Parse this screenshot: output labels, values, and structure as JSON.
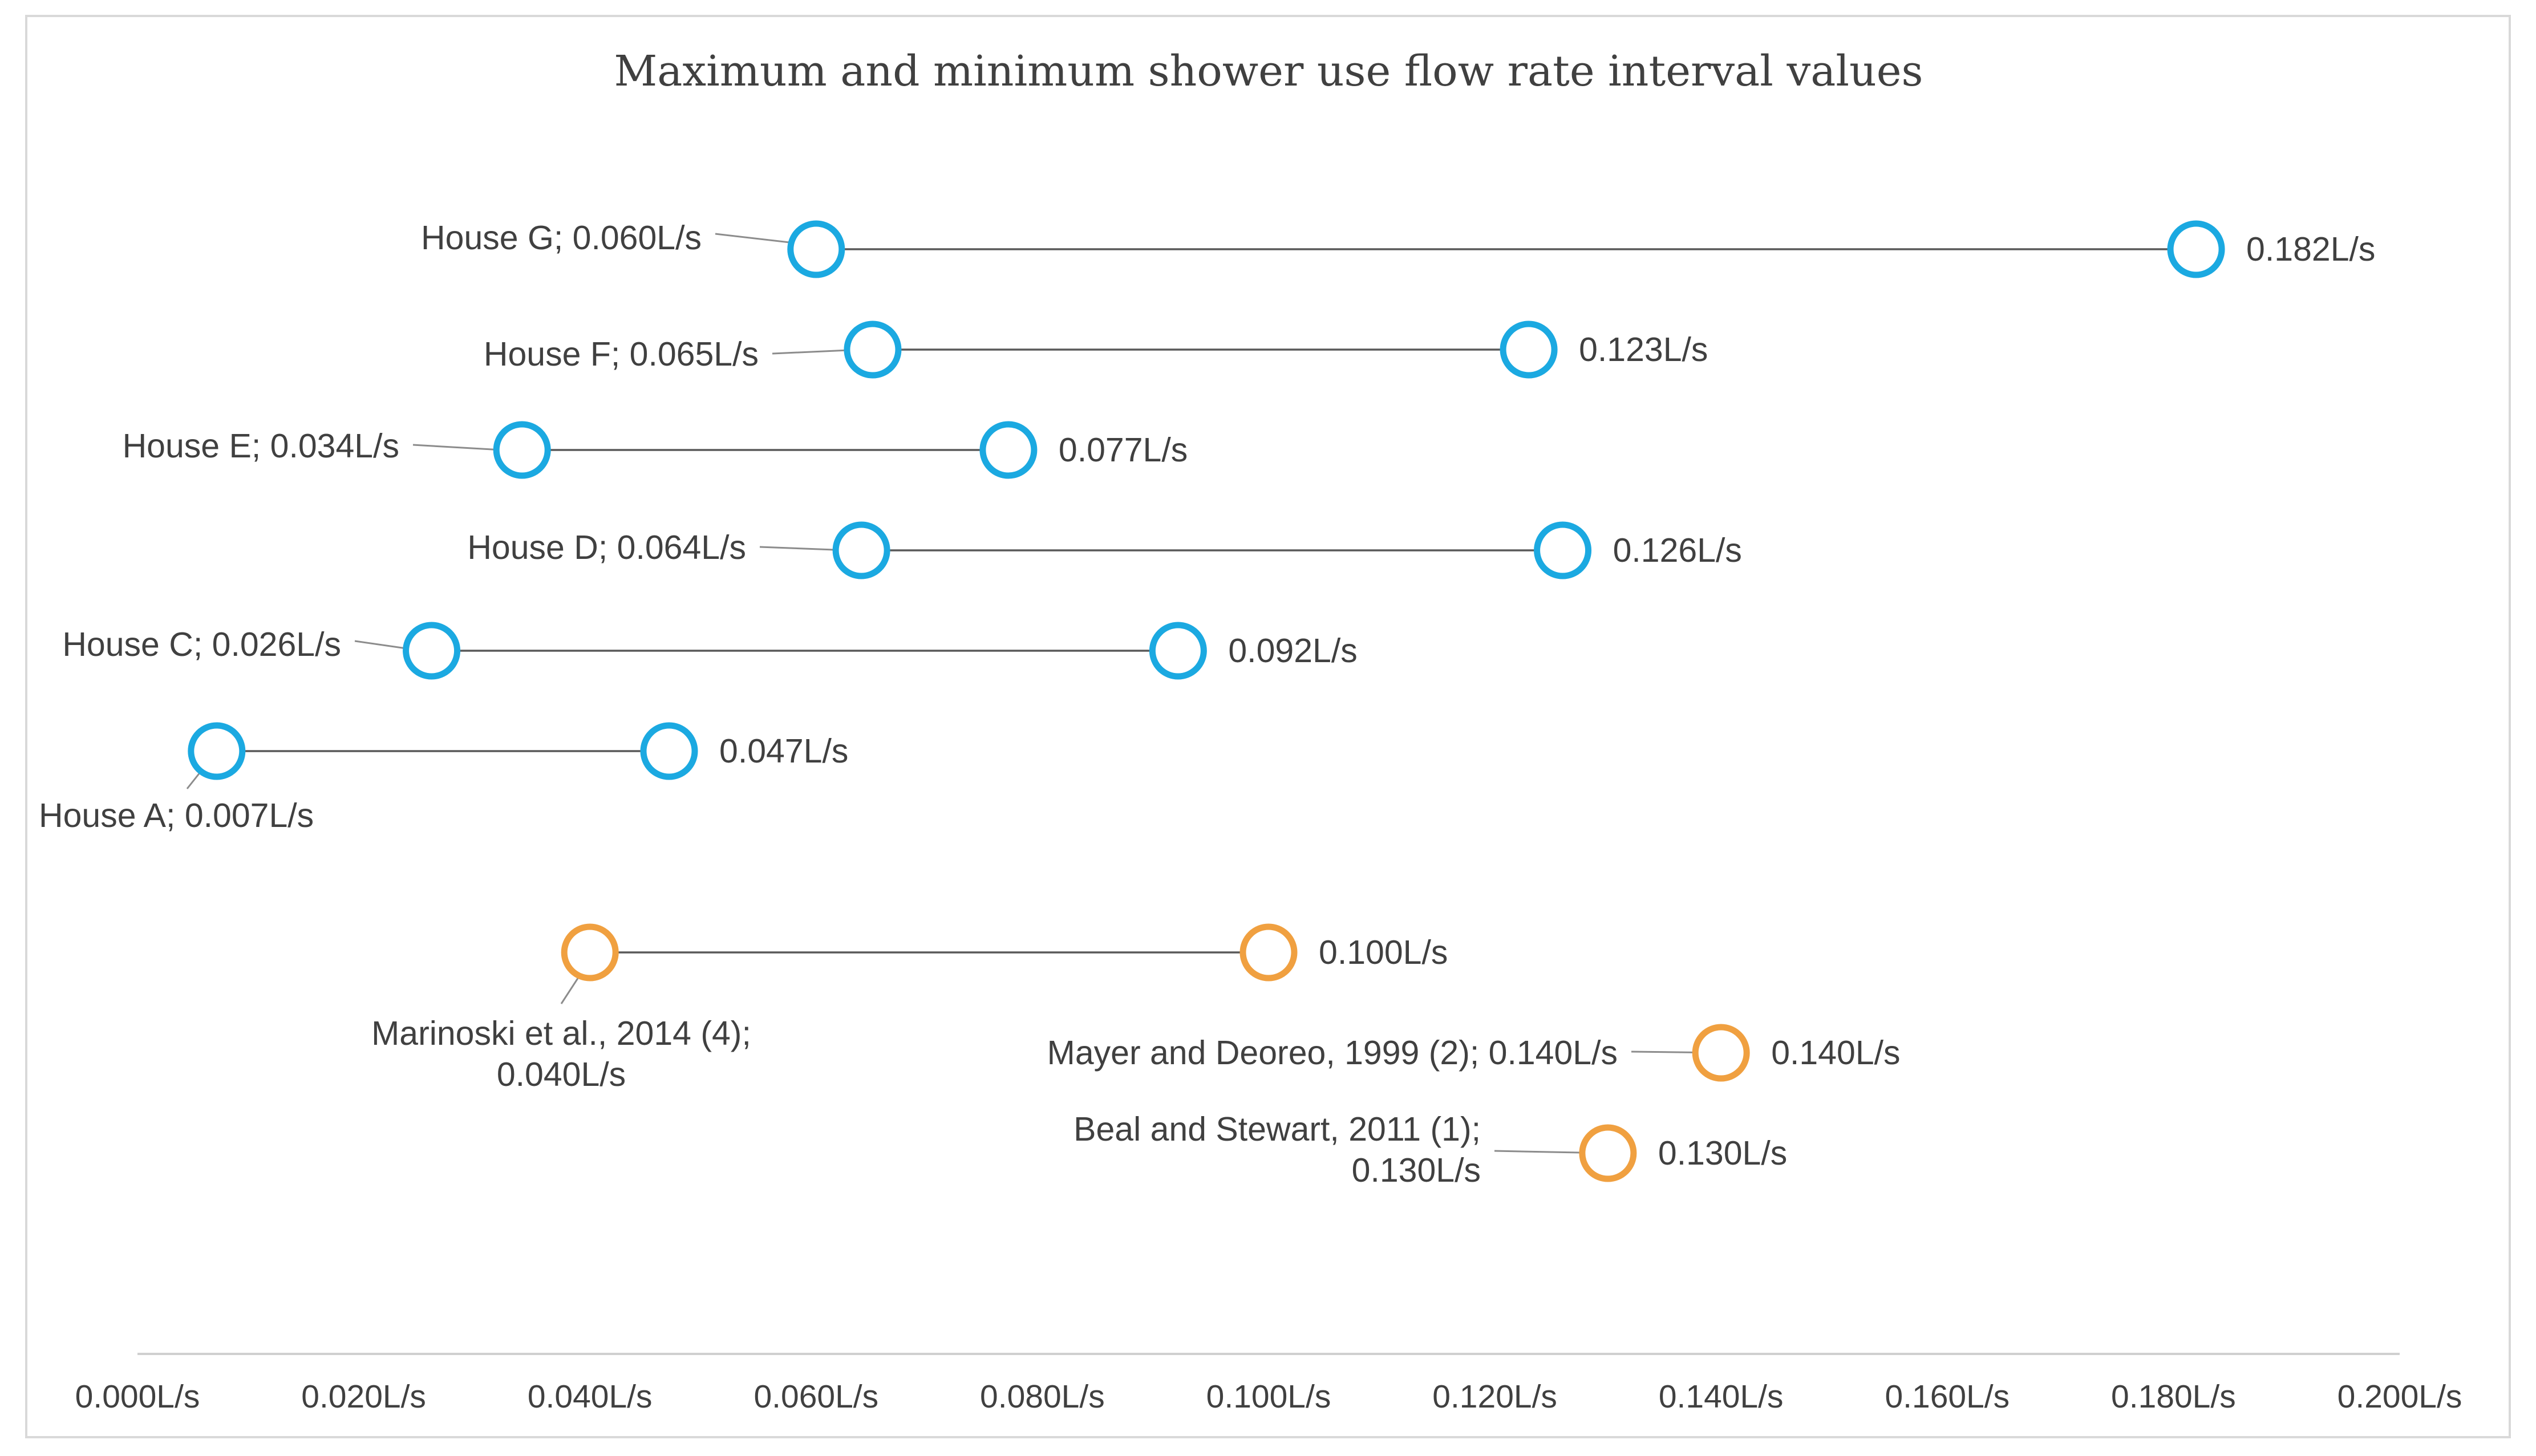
{
  "chart_data": {
    "type": "dumbbell",
    "title": "Maximum and minimum shower use flow rate interval values",
    "xlabel": "",
    "ylabel": "",
    "xlim": [
      0.0,
      0.2
    ],
    "grid": false,
    "legend": "none",
    "x_ticks": [
      "0.000L/s",
      "0.020L/s",
      "0.040L/s",
      "0.060L/s",
      "0.080L/s",
      "0.100L/s",
      "0.120L/s",
      "0.140L/s",
      "0.160L/s",
      "0.180L/s",
      "0.200L/s"
    ],
    "colors": {
      "house": "#1ba9e1",
      "reference": "#f0a040",
      "line": "#595959",
      "axis": "#d0d0d0",
      "text": "#404040"
    },
    "rows": [
      {
        "id": "house-g",
        "kind": "house",
        "min": 0.06,
        "max": 0.182,
        "min_label": [
          "House G; 0.060L/s"
        ],
        "max_label": "0.182L/s"
      },
      {
        "id": "house-f",
        "kind": "house",
        "min": 0.065,
        "max": 0.123,
        "min_label": [
          "House F; 0.065L/s"
        ],
        "max_label": "0.123L/s"
      },
      {
        "id": "house-e",
        "kind": "house",
        "min": 0.034,
        "max": 0.077,
        "min_label": [
          "House E; 0.034L/s"
        ],
        "max_label": "0.077L/s"
      },
      {
        "id": "house-d",
        "kind": "house",
        "min": 0.064,
        "max": 0.126,
        "min_label": [
          "House D; 0.064L/s"
        ],
        "max_label": "0.126L/s"
      },
      {
        "id": "house-c",
        "kind": "house",
        "min": 0.026,
        "max": 0.092,
        "min_label": [
          "House C; 0.026L/s"
        ],
        "max_label": "0.092L/s"
      },
      {
        "id": "house-a",
        "kind": "house",
        "min": 0.007,
        "max": 0.047,
        "min_label": [
          "House A; 0.007L/s"
        ],
        "max_label": "0.047L/s"
      },
      {
        "id": "marinoski",
        "kind": "reference",
        "min": 0.04,
        "max": 0.1,
        "min_label": [
          "Marinoski et al., 2014 (4);",
          "0.040L/s"
        ],
        "max_label": "0.100L/s"
      },
      {
        "id": "mayer",
        "kind": "reference",
        "min": 0.14,
        "max": null,
        "min_label": [
          "Mayer and Deoreo, 1999 (2); 0.140L/s"
        ],
        "max_label": "0.140L/s"
      },
      {
        "id": "beal",
        "kind": "reference",
        "min": 0.13,
        "max": null,
        "min_label": [
          "Beal and Stewart, 2011 (1);",
          "0.130L/s"
        ],
        "max_label": "0.130L/s"
      }
    ]
  }
}
